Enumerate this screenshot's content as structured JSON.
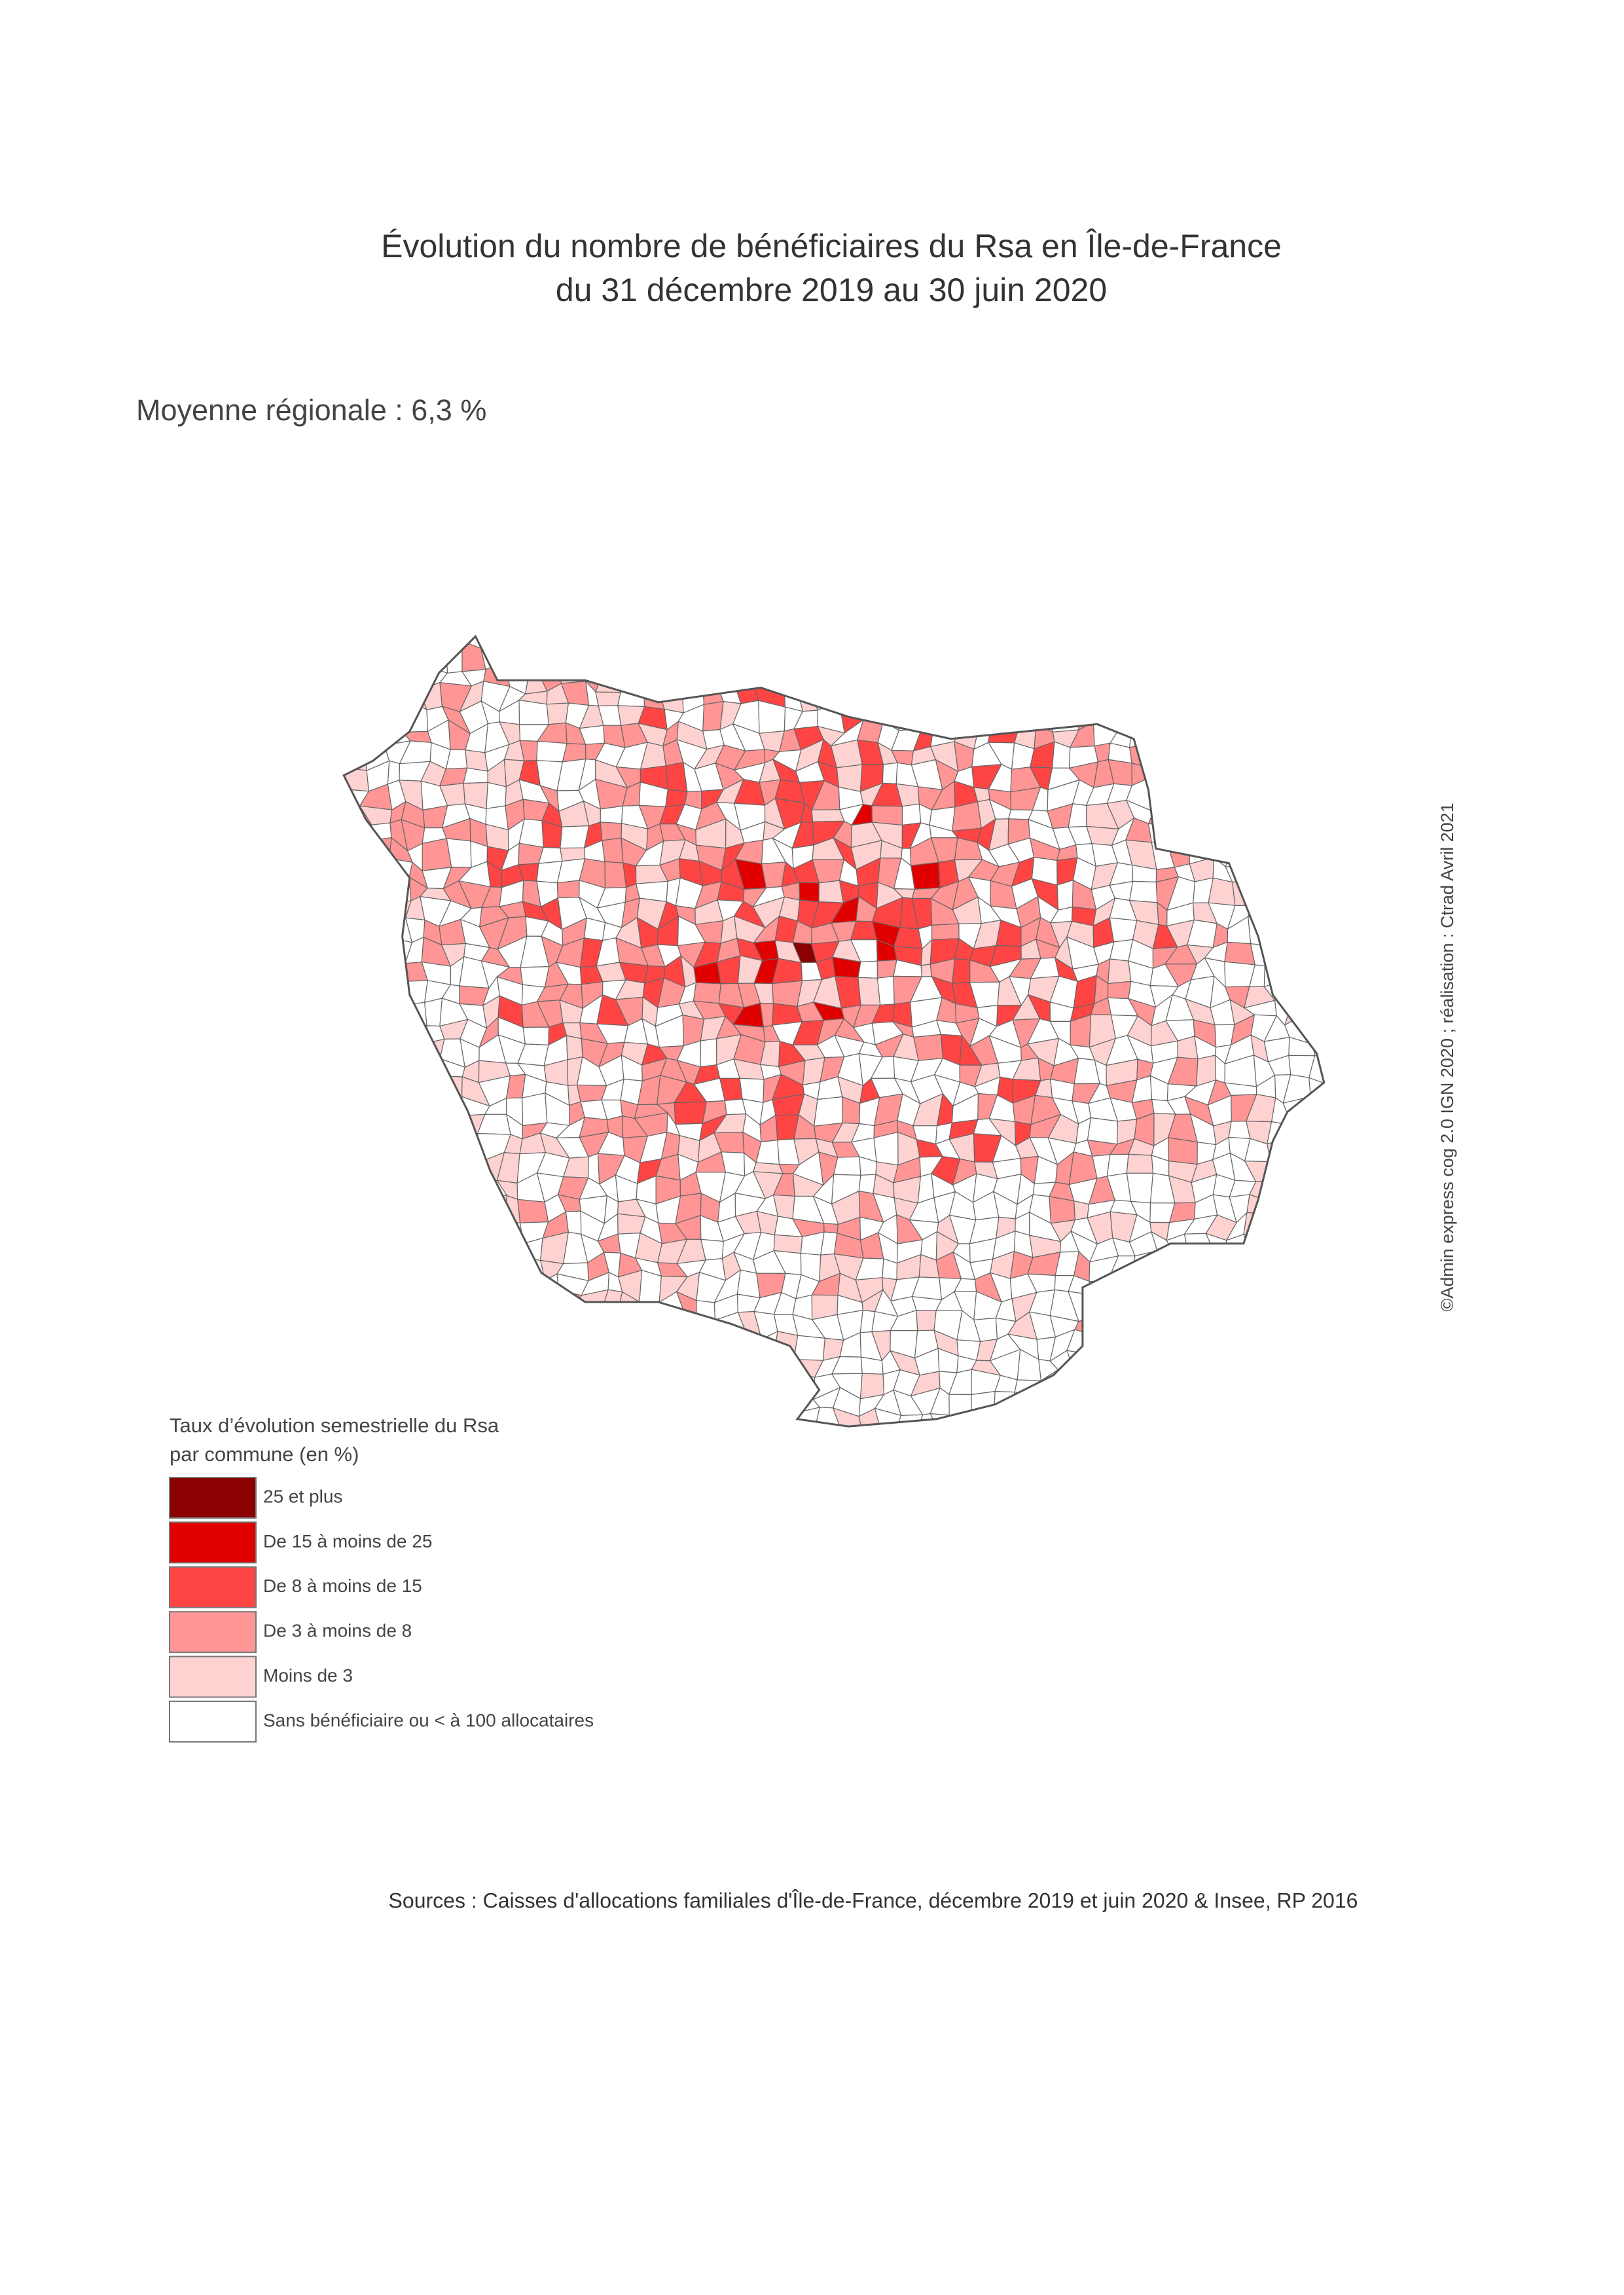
{
  "header": {
    "title_line1": "Évolution du nombre de bénéficiaires du Rsa en Île-de-France",
    "title_line2": "du 31 décembre 2019 au 30 juin 2020"
  },
  "subtitle": "Moyenne régionale : 6,3 %",
  "legend": {
    "title_line1": "Taux d’évolution semestrielle du Rsa",
    "title_line2": "par commune (en %)",
    "items": [
      {
        "label": "25 et plus",
        "color": "#8b0000"
      },
      {
        "label": "De 15 à moins de 25",
        "color": "#e00000"
      },
      {
        "label": "De 8 à moins de 15",
        "color": "#ff4444"
      },
      {
        "label": "De 3 à moins de 8",
        "color": "#ff9595"
      },
      {
        "label": "Moins de 3",
        "color": "#ffd2d2"
      },
      {
        "label": "Sans bénéficiaire ou < à 100 allocataires",
        "color": "#ffffff"
      }
    ]
  },
  "source": "Sources : Caisses d'allocations familiales d'Île-de-France, décembre 2019 et juin 2020 & Insee, RP 2016",
  "credit": "©Admin express cog 2.0 IGN 2020 ; réalisation : Ctrad Avril 2021"
}
